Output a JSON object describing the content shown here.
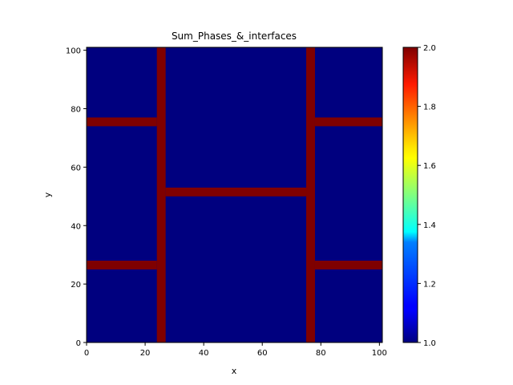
{
  "chart_data": {
    "type": "heatmap",
    "title": "Sum_Phases_&_interfaces",
    "xlabel": "x",
    "ylabel": "y",
    "xlim": [
      0,
      101
    ],
    "ylim": [
      0,
      101
    ],
    "x_ticks": [
      0,
      20,
      40,
      60,
      80,
      100
    ],
    "y_ticks": [
      0,
      20,
      40,
      60,
      80,
      100
    ],
    "grid": false,
    "colormap": "jet",
    "background_value": 1.0,
    "interface_value": 2.0,
    "interface_regions": [
      {
        "name": "left-vertical-interface",
        "x": [
          24,
          27
        ],
        "y": [
          0,
          101
        ]
      },
      {
        "name": "right-vertical-interface",
        "x": [
          75,
          78
        ],
        "y": [
          0,
          101
        ]
      },
      {
        "name": "center-horizontal-interface",
        "x": [
          27,
          75
        ],
        "y": [
          50,
          53
        ]
      },
      {
        "name": "left-top-interface",
        "x": [
          0,
          24
        ],
        "y": [
          74,
          77
        ]
      },
      {
        "name": "left-bottom-interface",
        "x": [
          0,
          24
        ],
        "y": [
          25,
          28
        ]
      },
      {
        "name": "right-top-interface",
        "x": [
          78,
          101
        ],
        "y": [
          74,
          77
        ]
      },
      {
        "name": "right-bottom-interface",
        "x": [
          78,
          101
        ],
        "y": [
          25,
          28
        ]
      }
    ],
    "colorbar": {
      "range": [
        1.0,
        2.0
      ],
      "ticks": [
        "1.0",
        "1.2",
        "1.4",
        "1.6",
        "1.8",
        "2.0"
      ]
    },
    "colors": {
      "low": "#00007f",
      "high": "#7f0000"
    }
  }
}
